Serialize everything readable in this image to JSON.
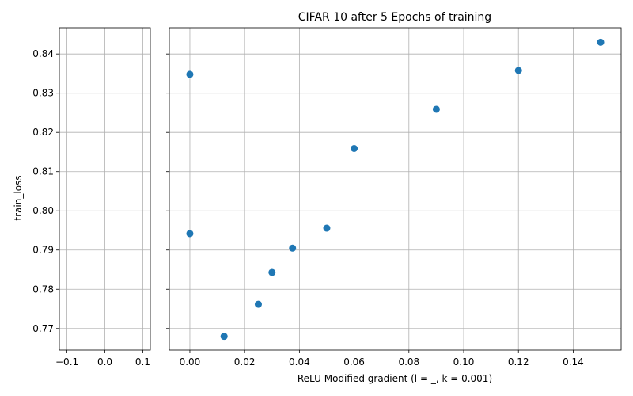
{
  "chart_data": {
    "type": "scatter",
    "title": "CIFAR 10 after 5 Epochs of training",
    "xlabel": "ReLU Modified gradient (l = _, k = 0.001)",
    "ylabel": "train_loss",
    "grid": true,
    "point_color": "#1f77b4",
    "sharey": true,
    "panels": [
      {
        "name": "left-panel",
        "xlim": [
          -0.12,
          0.12
        ],
        "xticks": [
          -0.1,
          0.0,
          0.1
        ],
        "xtick_labels": [
          "−0.1",
          "0.0",
          "0.1"
        ],
        "points": []
      },
      {
        "name": "right-panel",
        "xlim": [
          -0.0075,
          0.1575
        ],
        "xticks": [
          0.0,
          0.02,
          0.04,
          0.06,
          0.08,
          0.1,
          0.12,
          0.14
        ],
        "xtick_labels": [
          "0.00",
          "0.02",
          "0.04",
          "0.06",
          "0.08",
          "0.10",
          "0.12",
          "0.14"
        ],
        "points": [
          {
            "x": 0.0,
            "y": 0.8348
          },
          {
            "x": 0.0,
            "y": 0.7942
          },
          {
            "x": 0.0125,
            "y": 0.768
          },
          {
            "x": 0.025,
            "y": 0.7762
          },
          {
            "x": 0.03,
            "y": 0.7843
          },
          {
            "x": 0.0375,
            "y": 0.7905
          },
          {
            "x": 0.05,
            "y": 0.7956
          },
          {
            "x": 0.06,
            "y": 0.8159
          },
          {
            "x": 0.09,
            "y": 0.8259
          },
          {
            "x": 0.12,
            "y": 0.8358
          },
          {
            "x": 0.15,
            "y": 0.843
          }
        ]
      }
    ],
    "ylim": [
      0.7645,
      0.8467
    ],
    "yticks": [
      0.77,
      0.78,
      0.79,
      0.8,
      0.81,
      0.82,
      0.83,
      0.84
    ],
    "ytick_labels": [
      "0.77",
      "0.78",
      "0.79",
      "0.80",
      "0.81",
      "0.82",
      "0.83",
      "0.84"
    ]
  }
}
